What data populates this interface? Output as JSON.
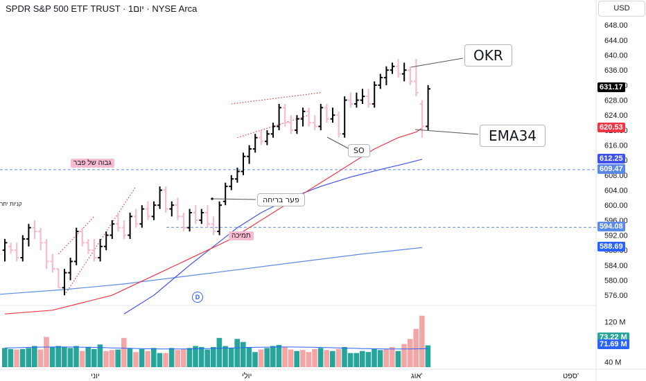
{
  "header": {
    "title": "SPDR S&P 500 ETF TRUST · 1יום · NYSE Arca",
    "currency": "USD"
  },
  "annotations": {
    "okr": "OKR",
    "ema34": "EMA34",
    "so": "SO",
    "breakaway_gap": "פער בריחה",
    "feb_high": "גבוה של פבר",
    "support": "תמיכה",
    "left_edge_text": "קניות יתר"
  },
  "indicator_marker": "D",
  "colors": {
    "up": "#000000",
    "down": "#f8bbd0",
    "ema34": "#f23645",
    "ma_blue": "#3f51e8",
    "ma_long": "#5b8ae6",
    "vol_up": "#26a69a",
    "vol_down": "#f4a6a6",
    "hline": "#5b8ae6",
    "channel": "#e53935"
  },
  "chart_data": {
    "type": "bar",
    "style": "ohlc",
    "y_axis": {
      "ticks": [
        576,
        580,
        584,
        588,
        592,
        596,
        600,
        604,
        608,
        612,
        616,
        620,
        624,
        628,
        632,
        636,
        640,
        644,
        648
      ],
      "range": [
        574,
        651
      ],
      "labels": [
        "576.00",
        "580.00",
        "584.00",
        "588.00",
        "592.00",
        "596.00",
        "600.00",
        "604.00",
        "608.00",
        "612.00",
        "616.00",
        "620.00",
        "624.00",
        "628.00",
        "632.00",
        "636.00",
        "640.00",
        "644.00",
        "648.00"
      ]
    },
    "x_axis": {
      "labels": [
        "יוני",
        "יולי",
        "אוג'",
        "ספט'"
      ]
    },
    "horizontal_lines": [
      609.47,
      594.08
    ],
    "price_badges": [
      {
        "label": "631.17",
        "value": 631.17,
        "color": "#000000"
      },
      {
        "label": "620.53",
        "value": 620.53,
        "color": "#f23645"
      },
      {
        "label": "612.25",
        "value": 612.25,
        "color": "#3f51e8"
      },
      {
        "label": "609.47",
        "value": 609.47,
        "color": "#5b8ae6"
      },
      {
        "label": "594.08",
        "value": 594.08,
        "color": "#5b8ae6"
      },
      {
        "label": "588.69",
        "value": 588.69,
        "color": "#2962ff"
      }
    ],
    "volume_axis": {
      "ticks": [
        40,
        120
      ],
      "labels": [
        "40 M",
        "120 M"
      ],
      "range": [
        30,
        140
      ]
    },
    "volume_badges": [
      {
        "label": "73.22 M",
        "value": 73.22,
        "color": "#26a69a"
      },
      {
        "label": "71.69 M",
        "value": 71.69,
        "color": "#2962ff"
      }
    ],
    "ohlc": [
      [
        588,
        591,
        585,
        590
      ],
      [
        589,
        590,
        587,
        588
      ],
      [
        588,
        590,
        585,
        586
      ],
      [
        586,
        592,
        585,
        591
      ],
      [
        591,
        595,
        589,
        594
      ],
      [
        594,
        596,
        591,
        593
      ],
      [
        593,
        594,
        588,
        590
      ],
      [
        590,
        591,
        583,
        585
      ],
      [
        585,
        587,
        582,
        583
      ],
      [
        583,
        583,
        578,
        578
      ],
      [
        578,
        583,
        576,
        582
      ],
      [
        582,
        586,
        580,
        585
      ],
      [
        585,
        594,
        584,
        593
      ],
      [
        593,
        594,
        589,
        590
      ],
      [
        590,
        591,
        587,
        588
      ],
      [
        588,
        591,
        585,
        586
      ],
      [
        586,
        591,
        585,
        589
      ],
      [
        589,
        593,
        588,
        592
      ],
      [
        592,
        596,
        591,
        595
      ],
      [
        595,
        598,
        593,
        594
      ],
      [
        594,
        596,
        591,
        592
      ],
      [
        592,
        598,
        591,
        597
      ],
      [
        597,
        599,
        594,
        595
      ],
      [
        595,
        600,
        594,
        599
      ],
      [
        599,
        601,
        596,
        597
      ],
      [
        597,
        601,
        596,
        600
      ],
      [
        600,
        605,
        599,
        604
      ],
      [
        604,
        605,
        598,
        599
      ],
      [
        599,
        601,
        597,
        600
      ],
      [
        600,
        602,
        596,
        597
      ],
      [
        597,
        598,
        593,
        594
      ],
      [
        594,
        599,
        593,
        598
      ],
      [
        598,
        600,
        595,
        596
      ],
      [
        596,
        599,
        595,
        598
      ],
      [
        598,
        600,
        594,
        595
      ],
      [
        595,
        597,
        592,
        593
      ],
      [
        593,
        601,
        592,
        600
      ],
      [
        601,
        606,
        600,
        605
      ],
      [
        605,
        608,
        604,
        607
      ],
      [
        607,
        610,
        606,
        609
      ],
      [
        609,
        614,
        608,
        613
      ],
      [
        613,
        616,
        611,
        615
      ],
      [
        615,
        619,
        614,
        618
      ],
      [
        618,
        620,
        616,
        617
      ],
      [
        617,
        620,
        616,
        619
      ],
      [
        619,
        622,
        618,
        621
      ],
      [
        621,
        627,
        620,
        626
      ],
      [
        626,
        627,
        621,
        622
      ],
      [
        622,
        624,
        619,
        620
      ],
      [
        620,
        624,
        619,
        623
      ],
      [
        623,
        626,
        621,
        625
      ],
      [
        625,
        626,
        621,
        622
      ],
      [
        622,
        624,
        620,
        621
      ],
      [
        621,
        627,
        620,
        626
      ],
      [
        626,
        627,
        622,
        623
      ],
      [
        623,
        626,
        622,
        624
      ],
      [
        624,
        625,
        618,
        619
      ],
      [
        619,
        629,
        618,
        628
      ],
      [
        628,
        630,
        626,
        627
      ],
      [
        627,
        630,
        626,
        628
      ],
      [
        628,
        631,
        627,
        629
      ],
      [
        629,
        631,
        626,
        627
      ],
      [
        627,
        633,
        626,
        632
      ],
      [
        632,
        635,
        631,
        634
      ],
      [
        634,
        637,
        632,
        636
      ],
      [
        636,
        638,
        635,
        637
      ],
      [
        637,
        639,
        634,
        635
      ],
      [
        635,
        638,
        633,
        636
      ],
      [
        636,
        637,
        632,
        633
      ],
      [
        633,
        639,
        629,
        630
      ],
      [
        627,
        628,
        618,
        621
      ],
      [
        621,
        632,
        620,
        631
      ]
    ],
    "volume": [
      [
        68,
        "u"
      ],
      [
        66,
        "u"
      ],
      [
        65,
        "d"
      ],
      [
        66,
        "u"
      ],
      [
        68,
        "u"
      ],
      [
        72,
        "u"
      ],
      [
        65,
        "d"
      ],
      [
        90,
        "d"
      ],
      [
        70,
        "u"
      ],
      [
        72,
        "u"
      ],
      [
        70,
        "u"
      ],
      [
        68,
        "u"
      ],
      [
        72,
        "u"
      ],
      [
        62,
        "d"
      ],
      [
        70,
        "u"
      ],
      [
        66,
        "u"
      ],
      [
        75,
        "u"
      ],
      [
        62,
        "d"
      ],
      [
        64,
        "d"
      ],
      [
        65,
        "u"
      ],
      [
        88,
        "d"
      ],
      [
        68,
        "u"
      ],
      [
        60,
        "d"
      ],
      [
        66,
        "u"
      ],
      [
        62,
        "d"
      ],
      [
        68,
        "u"
      ],
      [
        58,
        "u"
      ],
      [
        58,
        "d"
      ],
      [
        68,
        "u"
      ],
      [
        64,
        "d"
      ],
      [
        66,
        "d"
      ],
      [
        68,
        "u"
      ],
      [
        72,
        "u"
      ],
      [
        70,
        "u"
      ],
      [
        65,
        "u"
      ],
      [
        70,
        "u"
      ],
      [
        88,
        "u"
      ],
      [
        72,
        "u"
      ],
      [
        68,
        "u"
      ],
      [
        86,
        "u"
      ],
      [
        80,
        "u"
      ],
      [
        70,
        "u"
      ],
      [
        60,
        "u"
      ],
      [
        65,
        "d"
      ],
      [
        68,
        "u"
      ],
      [
        72,
        "u"
      ],
      [
        74,
        "u"
      ],
      [
        70,
        "d"
      ],
      [
        65,
        "d"
      ],
      [
        62,
        "u"
      ],
      [
        64,
        "d"
      ],
      [
        60,
        "d"
      ],
      [
        66,
        "d"
      ],
      [
        68,
        "u"
      ],
      [
        64,
        "d"
      ],
      [
        62,
        "u"
      ],
      [
        66,
        "d"
      ],
      [
        70,
        "u"
      ],
      [
        58,
        "u"
      ],
      [
        58,
        "u"
      ],
      [
        62,
        "u"
      ],
      [
        60,
        "u"
      ],
      [
        66,
        "u"
      ],
      [
        64,
        "u"
      ],
      [
        66,
        "d"
      ],
      [
        70,
        "d"
      ],
      [
        62,
        "u"
      ],
      [
        76,
        "d"
      ],
      [
        86,
        "d"
      ],
      [
        106,
        "d"
      ],
      [
        132,
        "d"
      ],
      [
        73.22,
        "u"
      ]
    ],
    "ema34": [
      [
        0,
        571
      ],
      [
        8,
        572
      ],
      [
        13,
        574
      ],
      [
        18,
        576
      ],
      [
        22,
        579
      ],
      [
        26,
        582
      ],
      [
        30,
        585
      ],
      [
        34,
        588
      ],
      [
        38,
        591
      ],
      [
        42,
        595
      ],
      [
        46,
        599
      ],
      [
        50,
        603
      ],
      [
        54,
        607
      ],
      [
        58,
        611
      ],
      [
        62,
        615
      ],
      [
        66,
        618
      ],
      [
        69,
        619.5
      ],
      [
        70,
        620.53
      ]
    ],
    "ma_blue": [
      [
        20,
        571
      ],
      [
        25,
        576
      ],
      [
        28,
        580
      ],
      [
        31,
        584
      ],
      [
        35,
        589
      ],
      [
        39,
        594
      ],
      [
        43,
        598
      ],
      [
        48,
        602
      ],
      [
        53,
        605
      ],
      [
        58,
        607.5
      ],
      [
        63,
        609.5
      ],
      [
        67,
        611
      ],
      [
        70,
        612.25
      ]
    ],
    "ma_long": [
      [
        -3,
        576
      ],
      [
        10,
        577.5
      ],
      [
        20,
        579
      ],
      [
        30,
        581
      ],
      [
        40,
        583
      ],
      [
        50,
        585
      ],
      [
        60,
        587
      ],
      [
        70,
        588.69
      ]
    ],
    "channels": [
      {
        "upper": [
          [
            9,
            587
          ],
          [
            15,
            597
          ]
        ],
        "lower": [
          [
            10,
            576
          ],
          [
            22,
            605
          ]
        ]
      },
      {
        "upper": [
          [
            38,
            627
          ],
          [
            53,
            630
          ]
        ],
        "lower": [
          [
            39,
            618
          ],
          [
            51,
            624
          ]
        ]
      }
    ]
  }
}
